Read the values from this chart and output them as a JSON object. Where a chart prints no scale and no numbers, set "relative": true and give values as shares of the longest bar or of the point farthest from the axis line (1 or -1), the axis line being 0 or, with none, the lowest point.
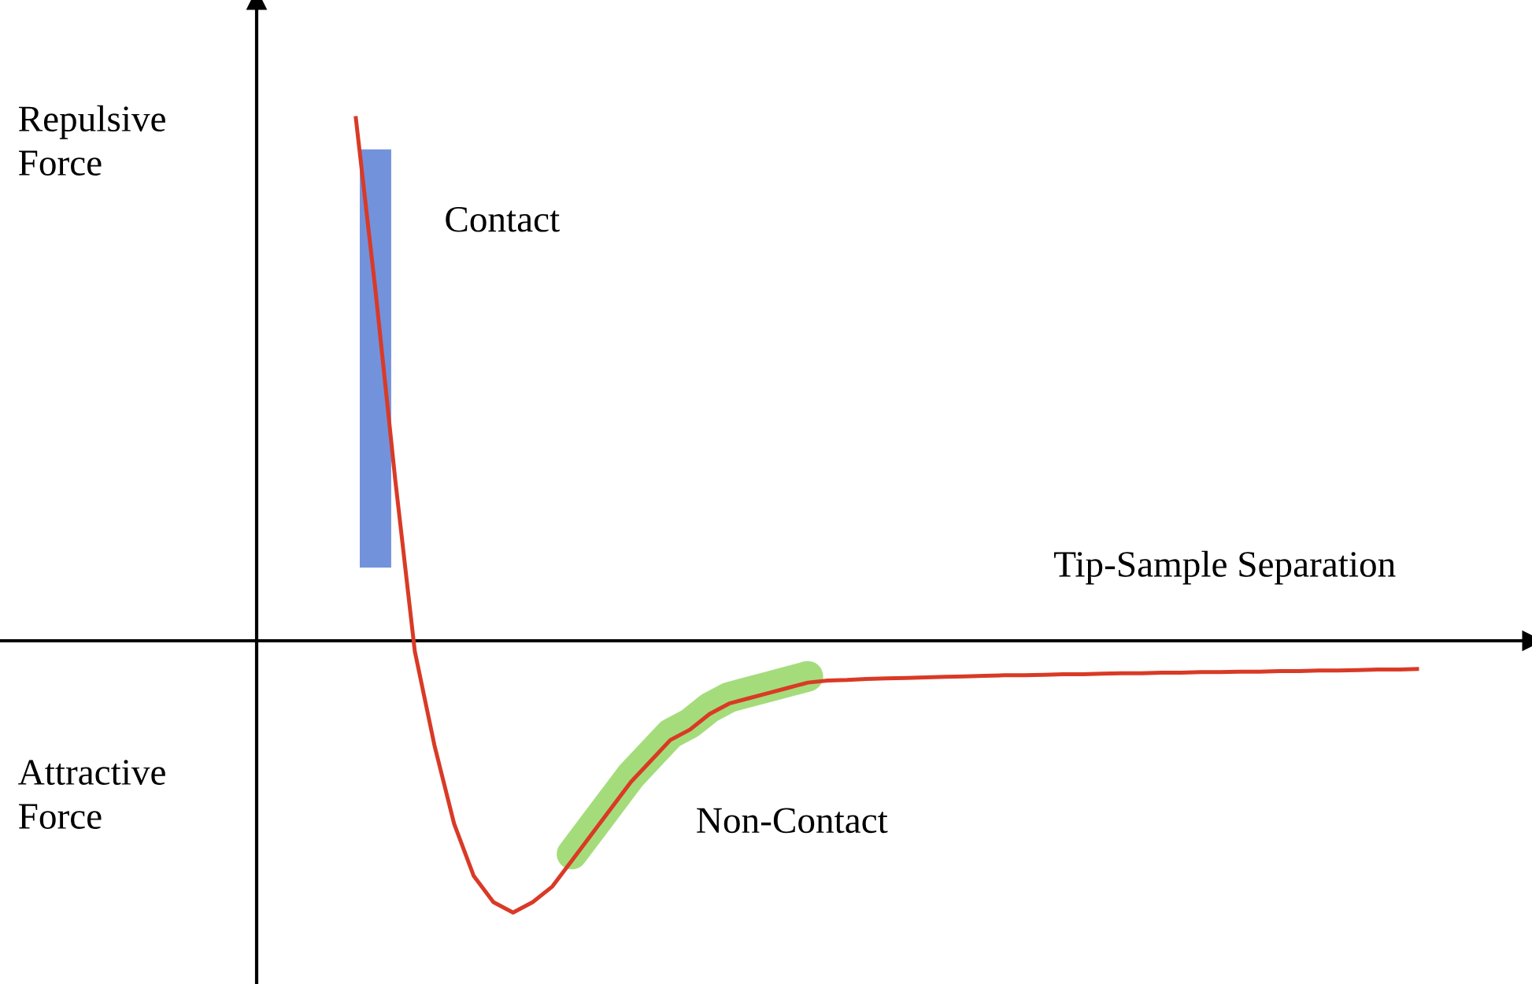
{
  "chart_data": {
    "type": "line",
    "relative": true,
    "xlabel": "Tip-Sample Separation",
    "categories": [
      null,
      null,
      null,
      null,
      null,
      null,
      null,
      null,
      null,
      null,
      null,
      null,
      null,
      null,
      null,
      null,
      null,
      null,
      null,
      null,
      null,
      null,
      null,
      null,
      null,
      null,
      null,
      null,
      null,
      null,
      null,
      null,
      null,
      null,
      null,
      null,
      null,
      null,
      null,
      null,
      null,
      null,
      null,
      null,
      null,
      null,
      null,
      null,
      null,
      null,
      null,
      null,
      null,
      null,
      null
    ],
    "series": [
      {
        "color": "#d93a26",
        "values": [
          1.0,
          0.67,
          0.31,
          -0.02,
          -0.2,
          -0.35,
          -0.45,
          -0.5,
          -0.52,
          -0.5,
          -0.47,
          -0.42,
          -0.37,
          -0.32,
          -0.27,
          -0.23,
          -0.19,
          -0.17,
          -0.14,
          -0.12,
          -0.11,
          -0.1,
          -0.09,
          -0.08,
          -0.076,
          -0.075,
          -0.073,
          -0.072,
          -0.071,
          -0.07,
          -0.069,
          -0.068,
          -0.067,
          -0.066,
          -0.066,
          -0.065,
          -0.064,
          -0.064,
          -0.063,
          -0.062,
          -0.062,
          -0.061,
          -0.061,
          -0.06,
          -0.06,
          -0.059,
          -0.059,
          -0.058,
          -0.058,
          -0.057,
          -0.057,
          -0.056,
          -0.055,
          -0.055,
          -0.054
        ]
      }
    ],
    "annotations": [
      "Repulsive\nForce",
      "Attractive\nForce",
      "Contact",
      "Non-Contact"
    ]
  }
}
